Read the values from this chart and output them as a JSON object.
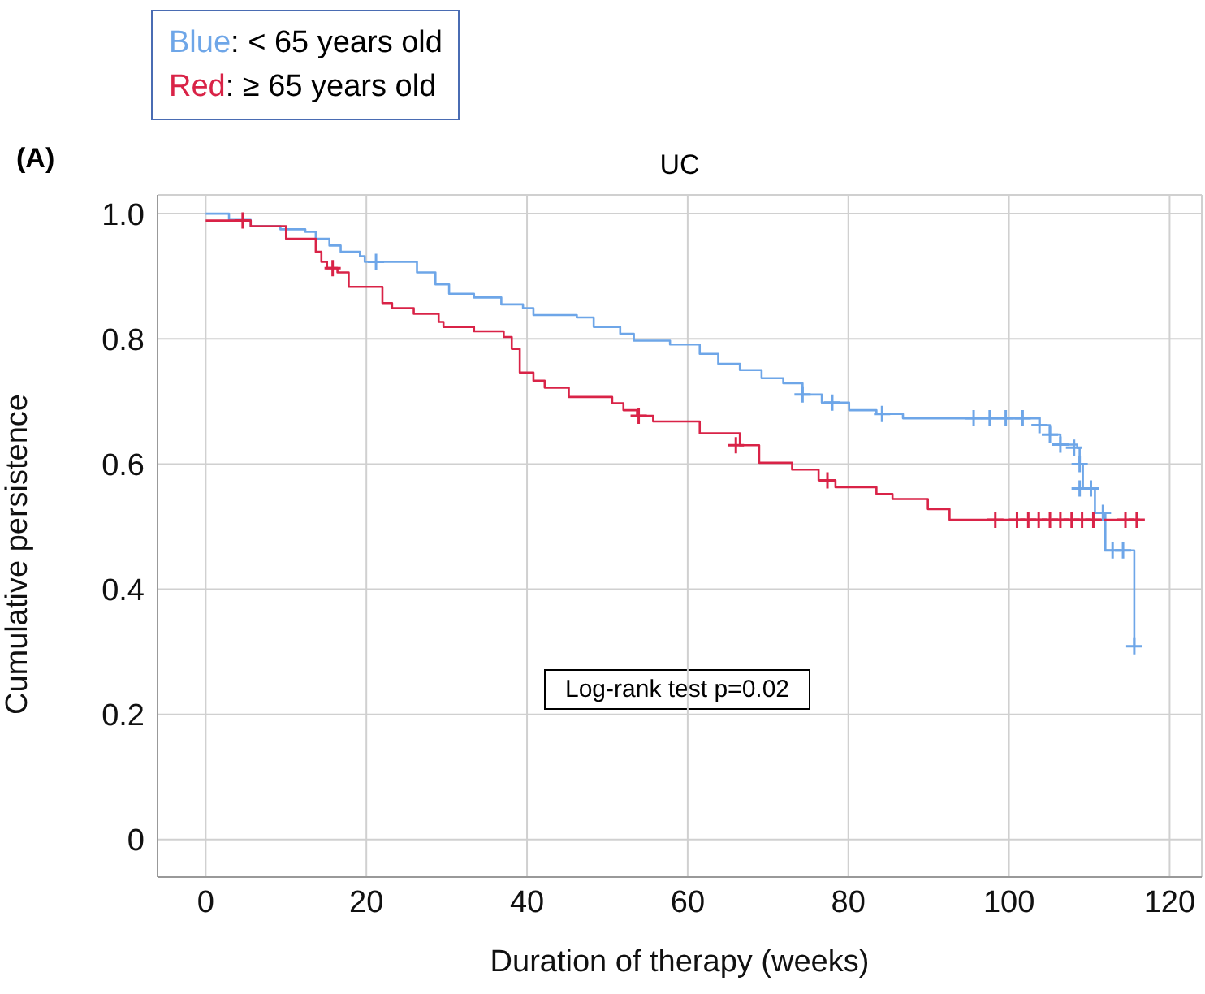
{
  "chart_data": {
    "type": "step",
    "title": "UC",
    "xlabel": "Duration of therapy (weeks)",
    "ylabel": "Cumulative persistence",
    "annotations": [
      "(A)",
      "Log-rank test p=0.02"
    ],
    "xlim": [
      -6,
      124
    ],
    "xticks": [
      0,
      20,
      40,
      60,
      80,
      100,
      120
    ],
    "ylim": [
      -0.06,
      1.03
    ],
    "yticks": [
      0,
      0.2,
      0.4,
      0.6,
      0.8,
      {
        "value": 1,
        "label": "1.0"
      }
    ],
    "grid": true,
    "legend": "top left",
    "line_style": "solid",
    "series": [
      {
        "name": "Blue: < 65 years old",
        "color": "#6ea6e8",
        "x": [
          0,
          2.9,
          5.6,
          9.3,
          12.4,
          13.7,
          15.4,
          16.8,
          19.2,
          19.8,
          26.3,
          28.6,
          30.3,
          33.4,
          36.8,
          39.5,
          40.8,
          46.2,
          48.3,
          51.6,
          53.3,
          57.8,
          61.5,
          63.8,
          66.5,
          69.2,
          71.9,
          74.3,
          76.7,
          80.1,
          83.5,
          86.8,
          103.8,
          105.1,
          106.4,
          108.5,
          108.8,
          109.2,
          110.7,
          112,
          115.6
        ],
        "values": [
          1,
          0.99,
          0.98,
          0.975,
          0.971,
          0.96,
          0.949,
          0.939,
          0.932,
          0.923,
          0.906,
          0.887,
          0.872,
          0.866,
          0.855,
          0.849,
          0.838,
          0.834,
          0.819,
          0.808,
          0.797,
          0.791,
          0.776,
          0.76,
          0.75,
          0.737,
          0.729,
          0.711,
          0.698,
          0.686,
          0.68,
          0.673,
          0.662,
          0.647,
          0.631,
          0.626,
          0.6,
          0.561,
          0.522,
          0.462,
          0.309
        ]
      },
      {
        "name": "Red: ≥ 65 years old",
        "color": "#d92347",
        "x": [
          0,
          5.6,
          10,
          13.7,
          14.4,
          15.1,
          16.4,
          17.8,
          22,
          23.2,
          25.9,
          29,
          29.6,
          33.4,
          37.1,
          38.1,
          39.1,
          40.8,
          42.2,
          45.2,
          50.6,
          52,
          53.7,
          55.7,
          61.5,
          66.5,
          68.9,
          73,
          76.3,
          78.4,
          83.5,
          85.5,
          89.9,
          92.6,
          116.3
        ],
        "values": [
          0.989,
          0.98,
          0.96,
          0.939,
          0.923,
          0.913,
          0.906,
          0.883,
          0.857,
          0.849,
          0.84,
          0.827,
          0.819,
          0.812,
          0.803,
          0.784,
          0.746,
          0.733,
          0.722,
          0.707,
          0.697,
          0.686,
          0.677,
          0.668,
          0.649,
          0.63,
          0.602,
          0.591,
          0.574,
          0.563,
          0.552,
          0.544,
          0.528,
          0.511,
          0.511
        ]
      },
      {
        "color": "#6ea6e8",
        "type": "scatter",
        "marker": "cross",
        "x": [
          21.2,
          74.3,
          78,
          84.2,
          95.6,
          97.6,
          99.6,
          101.7,
          103.8,
          105.1,
          106.4,
          108.1,
          108.8,
          108.8,
          110.2,
          111.7,
          112.9,
          114.2,
          115.6
        ],
        "values": [
          0.923,
          0.711,
          0.698,
          0.68,
          0.673,
          0.673,
          0.673,
          0.673,
          0.662,
          0.647,
          0.631,
          0.626,
          0.6,
          0.561,
          0.561,
          0.522,
          0.462,
          0.462,
          0.309
        ]
      },
      {
        "color": "#d92347",
        "type": "scatter",
        "marker": "cross",
        "x": [
          4.6,
          15.8,
          53.9,
          66,
          77.4,
          98.3,
          101,
          102.4,
          103.7,
          105.1,
          106.4,
          107.8,
          109.1,
          110.5,
          114.5,
          115.9
        ],
        "values": [
          0.989,
          0.913,
          0.677,
          0.63,
          0.574,
          0.511,
          0.511,
          0.511,
          0.511,
          0.511,
          0.511,
          0.511,
          0.511,
          0.511,
          0.511,
          0.511
        ]
      }
    ]
  }
}
